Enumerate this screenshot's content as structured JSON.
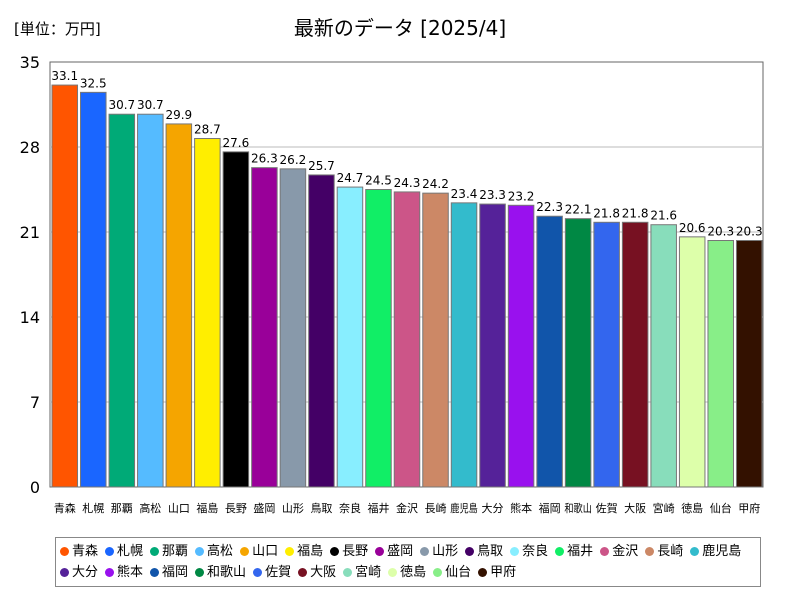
{
  "header": {
    "unit_label": "[単位：万円]",
    "title": "最新のデータ [2025/4]"
  },
  "chart_data": {
    "type": "bar",
    "title": "最新のデータ [2025/4]",
    "unit": "[単位：万円]",
    "ylim": [
      0,
      35
    ],
    "yticks": [
      0,
      7,
      14,
      21,
      28,
      35
    ],
    "categories": [
      "青森",
      "札幌",
      "那覇",
      "高松",
      "山口",
      "福島",
      "長野",
      "盛岡",
      "山形",
      "鳥取",
      "奈良",
      "福井",
      "金沢",
      "長崎",
      "鹿児島",
      "大分",
      "熊本",
      "福岡",
      "和歌山",
      "佐賀",
      "大阪",
      "宮崎",
      "徳島",
      "仙台",
      "甲府"
    ],
    "values": [
      33.1,
      32.5,
      30.7,
      30.7,
      29.9,
      28.7,
      27.6,
      26.3,
      26.2,
      25.7,
      24.7,
      24.5,
      24.3,
      24.2,
      23.4,
      23.3,
      23.2,
      22.3,
      22.1,
      21.8,
      21.8,
      21.6,
      20.6,
      20.3,
      20.3
    ],
    "value_labels": [
      "33.1",
      "32.5",
      "30.7",
      "30.7",
      "29.9",
      "28.7",
      "27.6",
      "26.3",
      "26.2",
      "25.7",
      "24.7",
      "24.5",
      "24.3",
      "24.2",
      "23.4",
      "23.3",
      "23.2",
      "22.3",
      "22.1",
      "21.8",
      "21.8",
      "21.6",
      "20.6",
      "20.3",
      "20.3"
    ],
    "colors": [
      "#ff5500",
      "#1a66ff",
      "#00aa77",
      "#55bbff",
      "#f5a500",
      "#ffee00",
      "#000000",
      "#990099",
      "#8899aa",
      "#440066",
      "#88eeff",
      "#11ee66",
      "#cc5588",
      "#cc8866",
      "#33bbcc",
      "#552299",
      "#9911ee",
      "#1155aa",
      "#008844",
      "#3366ee",
      "#771122",
      "#88ddbb",
      "#ddffaa",
      "#88ee88",
      "#331100"
    ],
    "grid": true,
    "legend_position": "bottom"
  }
}
